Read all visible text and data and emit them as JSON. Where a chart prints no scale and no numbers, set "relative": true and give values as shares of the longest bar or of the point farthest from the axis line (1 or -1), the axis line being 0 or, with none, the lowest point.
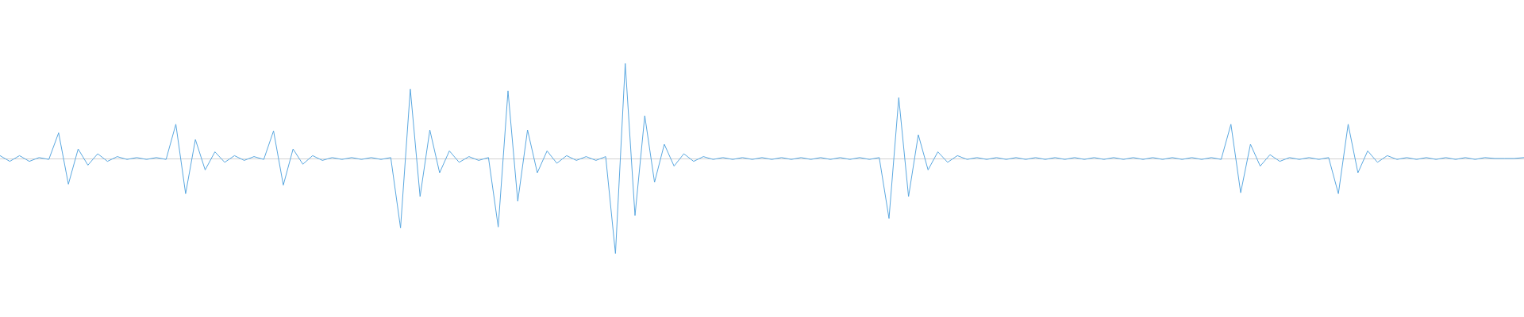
{
  "chart_data": {
    "type": "line",
    "relative": true,
    "tick_labels": false,
    "marker": "none",
    "line_style": "solid",
    "categories": [
      null,
      null,
      null,
      null,
      null,
      null,
      null,
      null,
      null,
      null,
      null,
      null,
      null,
      null,
      null,
      null,
      null,
      null,
      null,
      null,
      null,
      null,
      null,
      null,
      null,
      null,
      null,
      null,
      null,
      null,
      null,
      null,
      null,
      null,
      null,
      null,
      null,
      null,
      null,
      null,
      null,
      null,
      null,
      null,
      null,
      null,
      null,
      null,
      null,
      null,
      null,
      null,
      null,
      null,
      null,
      null,
      null,
      null,
      null,
      null,
      null,
      null,
      null,
      null,
      null,
      null,
      null,
      null,
      null,
      null,
      null,
      null,
      null,
      null,
      null,
      null,
      null,
      null,
      null,
      null,
      null,
      null,
      null,
      null,
      null,
      null,
      null,
      null,
      null,
      null,
      null,
      null,
      null,
      null,
      null,
      null,
      null,
      null,
      null,
      null,
      null,
      null,
      null,
      null,
      null,
      null,
      null,
      null,
      null,
      null,
      null,
      null,
      null,
      null,
      null,
      null,
      null,
      null,
      null,
      null,
      null,
      null,
      null,
      null,
      null,
      null,
      null,
      null,
      null,
      null,
      null,
      null,
      null,
      null,
      null,
      null,
      null,
      null,
      null,
      null,
      null,
      null,
      null,
      null,
      null,
      null,
      null,
      null,
      null,
      null,
      null,
      null,
      null,
      null,
      null,
      null,
      null
    ],
    "series": [
      {
        "color": "#5ba8e0",
        "values": [
          0.03,
          -0.03,
          0.03,
          -0.03,
          0.01,
          -0.01,
          0.27,
          -0.27,
          0.1,
          -0.07,
          0.05,
          -0.03,
          0.02,
          -0.01,
          0.01,
          -0.01,
          0.01,
          -0.01,
          0.36,
          -0.37,
          0.2,
          -0.12,
          0.07,
          -0.04,
          0.03,
          -0.02,
          0.02,
          -0.01,
          0.29,
          -0.28,
          0.1,
          -0.06,
          0.03,
          -0.02,
          0.01,
          -0.01,
          0.01,
          -0.01,
          0.01,
          -0.01,
          0.01,
          -0.73,
          0.73,
          -0.4,
          0.3,
          -0.15,
          0.08,
          -0.04,
          0.02,
          -0.02,
          0.01,
          -0.72,
          0.71,
          -0.45,
          0.3,
          -0.15,
          0.08,
          -0.05,
          0.03,
          -0.02,
          0.02,
          -0.02,
          0.02,
          -1,
          1,
          -0.6,
          0.45,
          -0.25,
          0.15,
          -0.08,
          0.05,
          -0.03,
          0.02,
          -0.01,
          0.01,
          -0.01,
          0.01,
          -0.01,
          0.01,
          -0.01,
          0.01,
          -0.01,
          0.01,
          -0.01,
          0.01,
          -0.01,
          0.01,
          -0.01,
          0.01,
          -0.01,
          0.01,
          -0.63,
          0.64,
          -0.4,
          0.25,
          -0.12,
          0.07,
          -0.04,
          0.03,
          -0.01,
          0.01,
          -0.01,
          0.01,
          -0.01,
          0.01,
          -0.01,
          0.01,
          -0.01,
          0.01,
          -0.01,
          0.01,
          -0.01,
          0.01,
          -0.01,
          0.01,
          -0.01,
          0.01,
          -0.01,
          0.01,
          -0.01,
          0.01,
          -0.01,
          0.01,
          -0.01,
          0.01,
          -0.01,
          0.36,
          -0.36,
          0.15,
          -0.08,
          0.04,
          -0.03,
          0.01,
          -0.01,
          0.01,
          -0.01,
          0.01,
          -0.37,
          0.36,
          -0.15,
          0.08,
          -0.04,
          0.03,
          -0.01,
          0.01,
          -0.01,
          0.01,
          -0.01,
          0.01,
          -0.01,
          0.01,
          -0.01,
          0.01,
          0,
          0,
          0,
          0.01
        ]
      }
    ]
  }
}
